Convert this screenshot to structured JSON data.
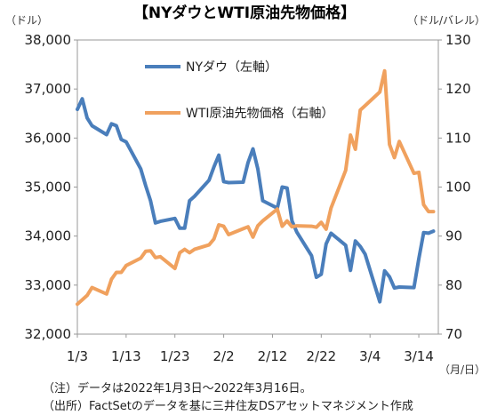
{
  "chart_data": {
    "type": "line",
    "title": "【NYダウとWTI原油先物価格】",
    "y_left_unit": "（ドル）",
    "y_right_unit": "（ドル/バレル）",
    "x_unit": "（月/日）",
    "y_left_ticks": [
      "32,000",
      "33,000",
      "34,000",
      "35,000",
      "36,000",
      "37,000",
      "38,000"
    ],
    "y_left_range": [
      32000,
      38000
    ],
    "y_right_ticks": [
      "70",
      "80",
      "90",
      "100",
      "110",
      "120",
      "130"
    ],
    "y_right_range": [
      70,
      130
    ],
    "x_tick_labels": [
      "1/3",
      "1/13",
      "1/23",
      "2/2",
      "2/12",
      "2/22",
      "3/4",
      "3/14"
    ],
    "x_tick_days": [
      0,
      10,
      20,
      30,
      40,
      50,
      60,
      70
    ],
    "x_range_days": [
      0,
      74
    ],
    "grid": false,
    "series": [
      {
        "name": "NYダウ（左軸）",
        "axis": "left",
        "color": "#4a7ebb",
        "x_days": [
          0,
          1,
          2,
          3,
          6,
          7,
          8,
          9,
          10,
          13,
          14,
          15,
          16,
          17,
          20,
          21,
          22,
          23,
          24,
          27,
          28,
          29,
          30,
          31,
          34,
          35,
          36,
          37,
          38,
          41,
          42,
          43,
          44,
          45,
          48,
          49,
          50,
          51,
          52,
          55,
          56,
          57,
          58,
          59,
          62,
          63,
          64,
          65,
          66,
          69,
          70,
          71,
          72,
          73
        ],
        "values": [
          36585,
          36800,
          36410,
          36250,
          36070,
          36290,
          36250,
          35970,
          35920,
          35370,
          35030,
          34720,
          34270,
          34300,
          34360,
          34160,
          34160,
          34720,
          34810,
          35140,
          35410,
          35650,
          35110,
          35090,
          35100,
          35500,
          35780,
          35370,
          34720,
          34570,
          35000,
          34980,
          34310,
          34080,
          33600,
          33160,
          33220,
          33840,
          34060,
          33810,
          33300,
          33900,
          33790,
          33630,
          32660,
          33290,
          33170,
          32940,
          32960,
          32950,
          33540,
          34070,
          34060,
          34100
        ]
      },
      {
        "name": "WTI原油先物価格（右軸）",
        "axis": "right",
        "color": "#f0a15e",
        "x_days": [
          0,
          1,
          2,
          3,
          6,
          7,
          8,
          9,
          10,
          13,
          14,
          15,
          16,
          17,
          20,
          21,
          22,
          23,
          24,
          27,
          28,
          29,
          30,
          31,
          34,
          35,
          36,
          37,
          38,
          41,
          42,
          43,
          44,
          45,
          48,
          49,
          50,
          51,
          52,
          55,
          56,
          57,
          58,
          59,
          62,
          63,
          64,
          65,
          66,
          69,
          70,
          71,
          72,
          73
        ],
        "values": [
          76.1,
          77.0,
          77.9,
          79.5,
          78.2,
          81.2,
          82.6,
          82.6,
          84.0,
          85.5,
          86.9,
          87.0,
          85.6,
          85.8,
          83.4,
          86.6,
          87.3,
          86.6,
          87.3,
          88.2,
          89.4,
          92.3,
          92.0,
          90.3,
          91.5,
          91.9,
          89.8,
          92.1,
          93.1,
          95.5,
          92.0,
          93.1,
          91.9,
          92.1,
          92.0,
          91.8,
          92.8,
          91.4,
          95.7,
          103.4,
          110.6,
          107.7,
          115.7,
          116.6,
          119.4,
          123.7,
          108.7,
          106.0,
          109.3,
          102.8,
          103.0,
          96.4,
          95.0,
          95.0
        ]
      }
    ]
  },
  "notes": {
    "note1": "（注）データは2022年1月3日～2022年3月16日。",
    "note2": "（出所）FactSetのデータを基に三井住友DSアセットマネジメント作成"
  }
}
